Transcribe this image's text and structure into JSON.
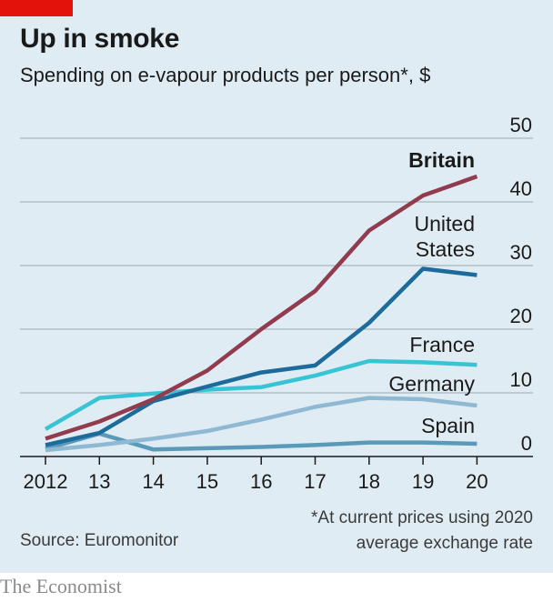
{
  "header": {
    "title": "Up in smoke",
    "subtitle": "Spending on e-vapour products per person*, $"
  },
  "footer": {
    "footnote_line1": "*At current prices using 2020",
    "footnote_line2": "average exchange rate",
    "source": "Source: Euromonitor",
    "brand": "The Economist"
  },
  "colors": {
    "background": "#e0ecf3",
    "accent_red": "#e3120b",
    "britain": "#913b4f",
    "united_states": "#1d6b9b",
    "france": "#38c4d4",
    "germany": "#8fb9d3",
    "spain": "#5a9ab8"
  },
  "chart_data": {
    "type": "line",
    "title": "Up in smoke",
    "subtitle": "Spending on e-vapour products per person*, $",
    "x": [
      2012,
      2013,
      2014,
      2015,
      2016,
      2017,
      2018,
      2019,
      2020
    ],
    "x_tick_labels": [
      "2012",
      "13",
      "14",
      "15",
      "16",
      "17",
      "18",
      "19",
      "20"
    ],
    "y_ticks": [
      0,
      10,
      20,
      30,
      40,
      50
    ],
    "y_tick_labels": [
      "0",
      "10",
      "20",
      "30",
      "40",
      "50"
    ],
    "ylim": [
      0,
      50
    ],
    "y_axis_side": "right",
    "grid": true,
    "series": [
      {
        "name": "Britain",
        "label_lines": [
          "Britain"
        ],
        "bold": true,
        "color": "#913b4f",
        "values": [
          2.8,
          5.5,
          9.0,
          13.5,
          20.0,
          26.0,
          35.5,
          41.0,
          44.0
        ]
      },
      {
        "name": "United States",
        "label_lines": [
          "United",
          "States"
        ],
        "bold": false,
        "color": "#1d6b9b",
        "values": [
          1.8,
          3.7,
          8.7,
          11.0,
          13.2,
          14.3,
          21.0,
          29.5,
          28.5
        ]
      },
      {
        "name": "France",
        "label_lines": [
          "France"
        ],
        "bold": false,
        "color": "#38c4d4",
        "values": [
          4.3,
          9.2,
          9.9,
          10.5,
          10.9,
          12.7,
          15.0,
          14.8,
          14.4
        ]
      },
      {
        "name": "Germany",
        "label_lines": [
          "Germany"
        ],
        "bold": false,
        "color": "#8fb9d3",
        "values": [
          1.0,
          1.8,
          2.8,
          4.0,
          5.8,
          7.8,
          9.2,
          9.0,
          8.0
        ]
      },
      {
        "name": "Spain",
        "label_lines": [
          "Spain"
        ],
        "bold": false,
        "color": "#5a9ab8",
        "values": [
          1.2,
          3.6,
          1.1,
          1.3,
          1.5,
          1.8,
          2.2,
          2.2,
          2.0
        ]
      }
    ],
    "source": "Source: Euromonitor",
    "note": "*At current prices using 2020 average exchange rate"
  }
}
